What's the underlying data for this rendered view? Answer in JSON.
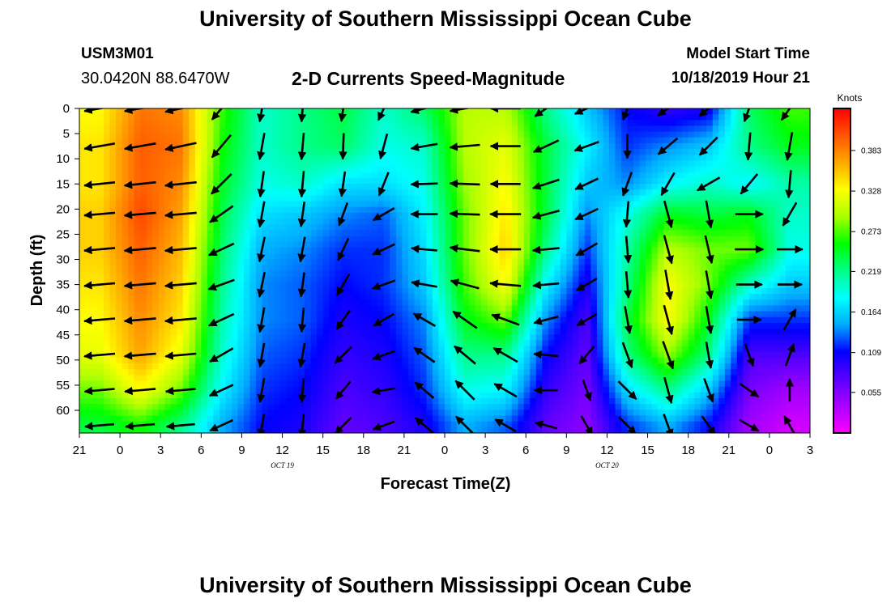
{
  "header": {
    "title": "University of Southern Mississippi Ocean Cube",
    "station_id": "USM3M01",
    "location": "30.0420N 88.6470W",
    "subtitle": "2-D Currents Speed-Magnitude",
    "model_start_label": "Model Start Time",
    "model_start_value": "10/18/2019 Hour 21"
  },
  "footer": {
    "title": "University of Southern Mississippi Ocean Cube"
  },
  "chart_data": {
    "type": "heatmap",
    "xlabel": "Forecast Time(Z)",
    "ylabel": "Depth (ft)",
    "x_tick_labels": [
      "21",
      "0",
      "3",
      "6",
      "9",
      "12",
      "15",
      "18",
      "21",
      "0",
      "3",
      "6",
      "9",
      "12",
      "15",
      "18",
      "21",
      "0",
      "3"
    ],
    "date_labels": [
      {
        "text": "OCT 19",
        "at_tick": 5
      },
      {
        "text": "OCT 20",
        "at_tick": 13
      }
    ],
    "y_ticks": [
      0,
      5,
      10,
      15,
      20,
      25,
      30,
      35,
      40,
      45,
      50,
      55,
      60
    ],
    "ylim": [
      0,
      64.5
    ],
    "y_inverted": true,
    "colorbar": {
      "label": "Knots",
      "tick_values": [
        0.383,
        0.328,
        0.273,
        0.219,
        0.164,
        0.109,
        0.055
      ],
      "tick_labels": [
        "0.383",
        "0.328",
        "0.273",
        "0.219",
        "0.164",
        "0.109",
        "0.055"
      ],
      "range": [
        0.0,
        0.44
      ],
      "colors": [
        "#ff00ff",
        "#aa00ff",
        "#5a00ff",
        "#0000ff",
        "#00aaff",
        "#00ffff",
        "#00ff88",
        "#00ff00",
        "#aaff00",
        "#ffff00",
        "#ffaa00",
        "#ff5500",
        "#ff0000"
      ]
    },
    "depths": [
      0,
      7.5,
      15,
      21,
      28,
      35,
      42,
      49,
      56,
      63
    ],
    "times_hours": [
      1.5,
      4.5,
      7.5,
      10.5,
      13.5,
      16.5,
      19.5,
      22.5,
      25.5,
      28.5,
      31.5,
      34.5,
      37.5,
      40.5,
      43.5,
      46.5,
      49.5,
      52.5
    ],
    "speed": [
      [
        0.33,
        0.39,
        0.38,
        0.27,
        0.2,
        0.22,
        0.24,
        0.2,
        0.23,
        0.3,
        0.3,
        0.22,
        0.16,
        0.11,
        0.09,
        0.1,
        0.23,
        0.27
      ],
      [
        0.34,
        0.4,
        0.39,
        0.26,
        0.2,
        0.22,
        0.23,
        0.19,
        0.2,
        0.3,
        0.32,
        0.24,
        0.18,
        0.12,
        0.14,
        0.16,
        0.22,
        0.25
      ],
      [
        0.34,
        0.4,
        0.38,
        0.25,
        0.19,
        0.2,
        0.17,
        0.17,
        0.19,
        0.29,
        0.33,
        0.24,
        0.16,
        0.14,
        0.18,
        0.2,
        0.18,
        0.21
      ],
      [
        0.35,
        0.41,
        0.37,
        0.24,
        0.17,
        0.16,
        0.14,
        0.13,
        0.18,
        0.28,
        0.34,
        0.24,
        0.14,
        0.19,
        0.25,
        0.24,
        0.25,
        0.2
      ],
      [
        0.35,
        0.4,
        0.36,
        0.23,
        0.15,
        0.14,
        0.12,
        0.12,
        0.17,
        0.28,
        0.35,
        0.22,
        0.12,
        0.21,
        0.3,
        0.28,
        0.28,
        0.19
      ],
      [
        0.34,
        0.39,
        0.35,
        0.22,
        0.14,
        0.13,
        0.11,
        0.12,
        0.16,
        0.27,
        0.33,
        0.18,
        0.1,
        0.22,
        0.33,
        0.28,
        0.2,
        0.16
      ],
      [
        0.33,
        0.38,
        0.34,
        0.21,
        0.14,
        0.13,
        0.1,
        0.11,
        0.14,
        0.25,
        0.28,
        0.14,
        0.08,
        0.24,
        0.33,
        0.25,
        0.12,
        0.12
      ],
      [
        0.32,
        0.37,
        0.32,
        0.2,
        0.13,
        0.12,
        0.09,
        0.1,
        0.13,
        0.22,
        0.22,
        0.11,
        0.07,
        0.22,
        0.29,
        0.22,
        0.08,
        0.08
      ],
      [
        0.28,
        0.33,
        0.28,
        0.18,
        0.12,
        0.11,
        0.08,
        0.09,
        0.12,
        0.19,
        0.18,
        0.09,
        0.06,
        0.17,
        0.22,
        0.16,
        0.06,
        0.04
      ],
      [
        0.24,
        0.26,
        0.22,
        0.15,
        0.11,
        0.1,
        0.07,
        0.08,
        0.1,
        0.15,
        0.13,
        0.07,
        0.05,
        0.12,
        0.15,
        0.11,
        0.04,
        0.02
      ]
    ],
    "arrow_dir": [
      [
        190,
        190,
        192,
        230,
        260,
        265,
        262,
        245,
        195,
        190,
        180,
        215,
        205,
        250,
        215,
        220,
        250,
        235
      ],
      [
        190,
        190,
        192,
        230,
        260,
        265,
        268,
        255,
        190,
        185,
        180,
        205,
        200,
        270,
        220,
        225,
        265,
        260
      ],
      [
        186,
        186,
        186,
        225,
        262,
        265,
        262,
        248,
        182,
        178,
        180,
        198,
        205,
        250,
        240,
        210,
        230,
        265
      ],
      [
        185,
        185,
        185,
        215,
        260,
        262,
        250,
        210,
        180,
        178,
        180,
        195,
        205,
        265,
        285,
        280,
        0,
        240
      ],
      [
        185,
        185,
        185,
        205,
        258,
        260,
        245,
        205,
        175,
        173,
        180,
        185,
        210,
        275,
        285,
        283,
        0,
        0
      ],
      [
        185,
        185,
        185,
        200,
        258,
        262,
        240,
        200,
        170,
        165,
        175,
        185,
        210,
        275,
        280,
        280,
        0,
        0
      ],
      [
        185,
        185,
        185,
        205,
        260,
        265,
        235,
        210,
        150,
        145,
        160,
        195,
        210,
        280,
        285,
        280,
        0,
        60
      ],
      [
        185,
        185,
        185,
        210,
        260,
        260,
        225,
        200,
        145,
        140,
        150,
        175,
        230,
        290,
        290,
        280,
        290,
        70
      ],
      [
        185,
        185,
        185,
        205,
        260,
        265,
        230,
        190,
        140,
        135,
        150,
        180,
        290,
        315,
        285,
        290,
        325,
        90
      ],
      [
        185,
        185,
        185,
        205,
        260,
        265,
        225,
        200,
        140,
        135,
        150,
        165,
        300,
        315,
        290,
        305,
        330,
        120
      ]
    ],
    "arrow_mag": [
      [
        0.9,
        0.95,
        0.95,
        0.8,
        0.65,
        0.65,
        0.6,
        0.6,
        0.7,
        0.85,
        0.85,
        0.7,
        0.6,
        0.5,
        0.5,
        0.5,
        0.7,
        0.75
      ],
      [
        0.9,
        0.95,
        0.95,
        0.8,
        0.65,
        0.65,
        0.6,
        0.6,
        0.65,
        0.85,
        0.85,
        0.7,
        0.6,
        0.5,
        0.55,
        0.55,
        0.7,
        0.75
      ],
      [
        0.9,
        0.95,
        0.95,
        0.75,
        0.6,
        0.6,
        0.55,
        0.55,
        0.65,
        0.85,
        0.85,
        0.7,
        0.55,
        0.55,
        0.6,
        0.6,
        0.6,
        0.7
      ],
      [
        0.9,
        0.95,
        0.95,
        0.75,
        0.6,
        0.55,
        0.5,
        0.5,
        0.65,
        0.85,
        0.9,
        0.7,
        0.55,
        0.6,
        0.7,
        0.7,
        0.7,
        0.65
      ],
      [
        0.9,
        0.95,
        0.95,
        0.7,
        0.55,
        0.55,
        0.5,
        0.5,
        0.6,
        0.85,
        0.9,
        0.65,
        0.5,
        0.65,
        0.8,
        0.75,
        0.75,
        0.6
      ],
      [
        0.9,
        0.95,
        0.95,
        0.7,
        0.55,
        0.5,
        0.5,
        0.5,
        0.6,
        0.8,
        0.9,
        0.6,
        0.45,
        0.65,
        0.85,
        0.75,
        0.6,
        0.5
      ],
      [
        0.9,
        0.95,
        0.95,
        0.7,
        0.55,
        0.5,
        0.45,
        0.45,
        0.55,
        0.8,
        0.8,
        0.55,
        0.4,
        0.7,
        0.85,
        0.7,
        0.5,
        0.5
      ],
      [
        0.9,
        0.95,
        0.9,
        0.65,
        0.5,
        0.5,
        0.45,
        0.45,
        0.55,
        0.7,
        0.7,
        0.5,
        0.4,
        0.65,
        0.8,
        0.65,
        0.45,
        0.45
      ],
      [
        0.85,
        0.9,
        0.85,
        0.6,
        0.5,
        0.5,
        0.4,
        0.45,
        0.5,
        0.65,
        0.6,
        0.45,
        0.35,
        0.55,
        0.65,
        0.55,
        0.4,
        0.4
      ],
      [
        0.8,
        0.8,
        0.75,
        0.55,
        0.45,
        0.45,
        0.4,
        0.4,
        0.45,
        0.55,
        0.5,
        0.4,
        0.35,
        0.45,
        0.5,
        0.4,
        0.35,
        0.3
      ]
    ]
  }
}
